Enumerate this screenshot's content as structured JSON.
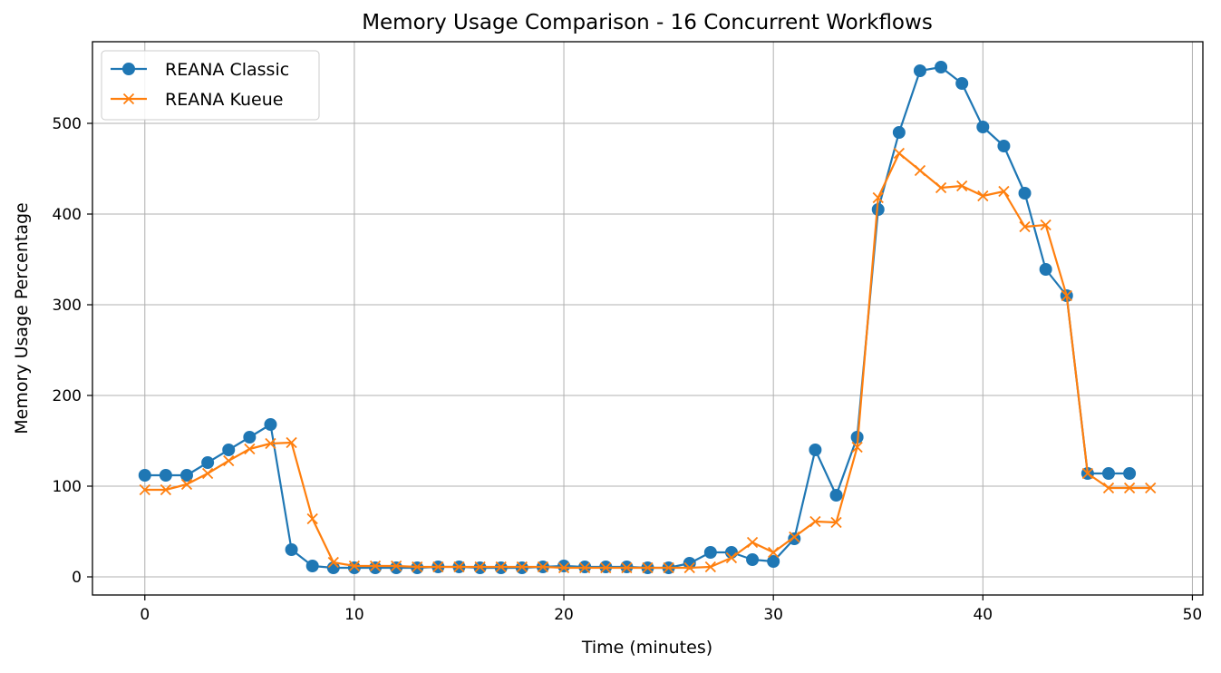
{
  "chart_data": {
    "type": "line",
    "title": "Memory Usage Comparison - 16 Concurrent Workflows",
    "xlabel": "Time (minutes)",
    "ylabel": "Memory Usage Percentage",
    "xlim": [
      -2.5,
      50.5
    ],
    "ylim": [
      -20,
      590
    ],
    "xticks": [
      0,
      10,
      20,
      30,
      40,
      50
    ],
    "yticks": [
      0,
      100,
      200,
      300,
      400,
      500
    ],
    "grid": true,
    "legend_position": "top-left",
    "series": [
      {
        "name": "REANA Classic",
        "color": "#1f77b4",
        "marker": "circle",
        "x": [
          0,
          1,
          2,
          3,
          4,
          5,
          6,
          7,
          8,
          9,
          10,
          11,
          12,
          13,
          14,
          15,
          16,
          17,
          18,
          19,
          20,
          21,
          22,
          23,
          24,
          25,
          26,
          27,
          28,
          29,
          30,
          31,
          32,
          33,
          34,
          35,
          36,
          37,
          38,
          39,
          40,
          41,
          42,
          43,
          44,
          45,
          46,
          47
        ],
        "y": [
          112,
          112,
          112,
          126,
          140,
          154,
          168,
          30,
          12,
          10,
          10,
          10,
          10,
          10,
          11,
          11,
          10,
          10,
          10,
          11,
          12,
          11,
          11,
          11,
          10,
          10,
          15,
          27,
          27,
          19,
          17,
          42,
          140,
          90,
          154,
          405,
          490,
          558,
          562,
          544,
          496,
          475,
          423,
          339,
          310,
          114,
          114,
          114
        ]
      },
      {
        "name": "REANA Kueue",
        "color": "#ff7f0e",
        "marker": "x",
        "x": [
          0,
          1,
          2,
          3,
          4,
          5,
          6,
          7,
          8,
          9,
          10,
          11,
          12,
          13,
          14,
          15,
          16,
          17,
          18,
          19,
          20,
          21,
          22,
          23,
          24,
          25,
          26,
          27,
          28,
          29,
          30,
          31,
          32,
          33,
          34,
          35,
          36,
          37,
          38,
          39,
          40,
          41,
          42,
          43,
          44,
          45,
          46,
          47,
          48
        ],
        "y": [
          96,
          96,
          102,
          114,
          128,
          141,
          147,
          148,
          64,
          16,
          12,
          12,
          12,
          11,
          11,
          11,
          11,
          11,
          11,
          11,
          10,
          10,
          10,
          10,
          10,
          10,
          10,
          11,
          21,
          38,
          27,
          44,
          61,
          60,
          143,
          418,
          467,
          448,
          429,
          431,
          420,
          425,
          386,
          388,
          310,
          114,
          98,
          98,
          98
        ]
      }
    ]
  }
}
